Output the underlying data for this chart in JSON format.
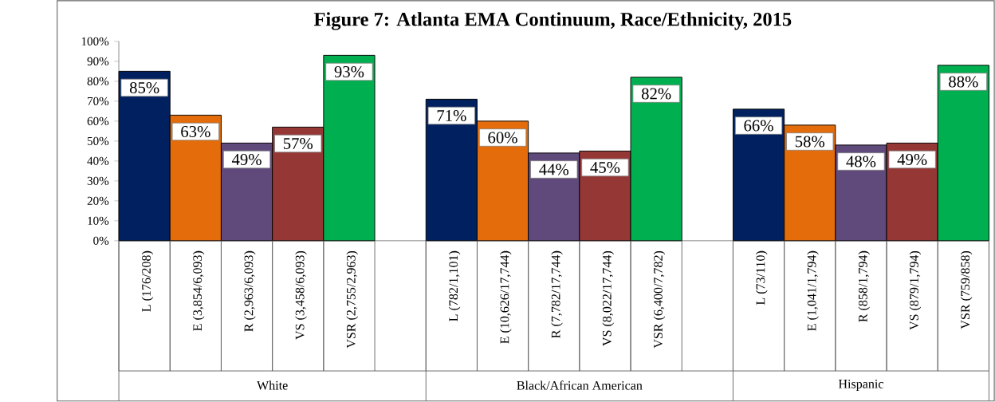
{
  "chart_data": {
    "type": "bar",
    "title": "Figure 7: Atlanta EMA Continuum, Race/Ethnicity, 2015",
    "categories": [
      "L (176/208)",
      "E (3,854/6,093)",
      "R (2,963/6,093)",
      "VS (3,458/6,093)",
      "VSR (2,755/2,963)",
      null,
      "L (782/1,101)",
      "E (10,626/17,744)",
      "R (7,782/17,744)",
      "VS (8,022/17,744)",
      "VSR (6,400/7,782)",
      null,
      "L (73/110)",
      "E (1,041/1,794)",
      "R (858/1,794)",
      "VS (879/1,794)",
      "VSR (759/858)"
    ],
    "values": [
      85,
      63,
      49,
      57,
      93,
      null,
      71,
      60,
      44,
      45,
      82,
      null,
      66,
      58,
      48,
      49,
      88
    ],
    "value_labels": [
      "85%",
      "63%",
      "49%",
      "57%",
      "93%",
      null,
      "71%",
      "60%",
      "44%",
      "45%",
      "82%",
      null,
      "66%",
      "58%",
      "48%",
      "49%",
      "88%"
    ],
    "colors": [
      "#002060",
      "#e46c0a",
      "#604a7b",
      "#953735",
      "#00b050",
      null,
      "#002060",
      "#e46c0a",
      "#604a7b",
      "#953735",
      "#00b050",
      null,
      "#002060",
      "#e46c0a",
      "#604a7b",
      "#953735",
      "#00b050"
    ],
    "ylim": [
      0,
      100
    ],
    "yticks": [
      {
        "value": 0,
        "label": "0%"
      },
      {
        "value": 10,
        "label": "10%"
      },
      {
        "value": 20,
        "label": "20%"
      },
      {
        "value": 30,
        "label": "30%"
      },
      {
        "value": 40,
        "label": "40%"
      },
      {
        "value": 50,
        "label": "50%"
      },
      {
        "value": 60,
        "label": "60%"
      },
      {
        "value": 70,
        "label": "70%"
      },
      {
        "value": 80,
        "label": "80%"
      },
      {
        "value": 90,
        "label": "90%"
      },
      {
        "value": 100,
        "label": "100%"
      }
    ],
    "annotations": [
      "White",
      "Black/African American",
      "Hispanic"
    ]
  }
}
